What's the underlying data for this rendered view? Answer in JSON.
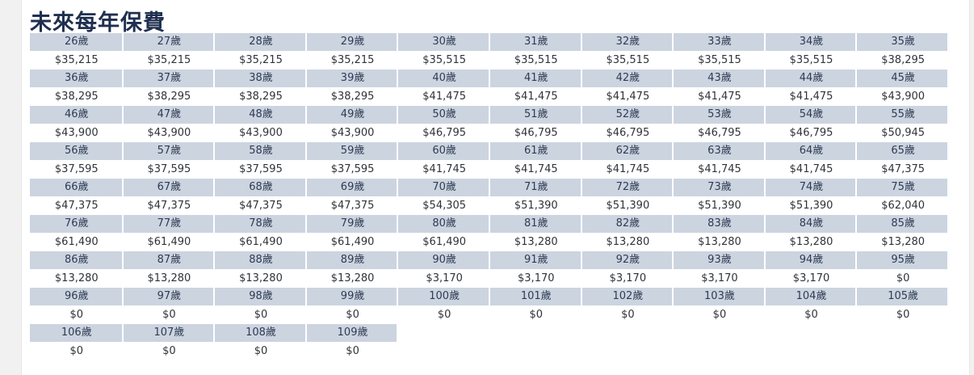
{
  "title": "未來每年保費",
  "columns": 10,
  "rows": [
    {
      "ages": [
        "26歲",
        "27歲",
        "28歲",
        "29歲",
        "30歲",
        "31歲",
        "32歲",
        "33歲",
        "34歲",
        "35歲"
      ],
      "premiums": [
        "$35,215",
        "$35,215",
        "$35,215",
        "$35,215",
        "$35,515",
        "$35,515",
        "$35,515",
        "$35,515",
        "$35,515",
        "$38,295"
      ]
    },
    {
      "ages": [
        "36歲",
        "37歲",
        "38歲",
        "39歲",
        "40歲",
        "41歲",
        "42歲",
        "43歲",
        "44歲",
        "45歲"
      ],
      "premiums": [
        "$38,295",
        "$38,295",
        "$38,295",
        "$38,295",
        "$41,475",
        "$41,475",
        "$41,475",
        "$41,475",
        "$41,475",
        "$43,900"
      ]
    },
    {
      "ages": [
        "46歲",
        "47歲",
        "48歲",
        "49歲",
        "50歲",
        "51歲",
        "52歲",
        "53歲",
        "54歲",
        "55歲"
      ],
      "premiums": [
        "$43,900",
        "$43,900",
        "$43,900",
        "$43,900",
        "$46,795",
        "$46,795",
        "$46,795",
        "$46,795",
        "$46,795",
        "$50,945"
      ]
    },
    {
      "ages": [
        "56歲",
        "57歲",
        "58歲",
        "59歲",
        "60歲",
        "61歲",
        "62歲",
        "63歲",
        "64歲",
        "65歲"
      ],
      "premiums": [
        "$37,595",
        "$37,595",
        "$37,595",
        "$37,595",
        "$41,745",
        "$41,745",
        "$41,745",
        "$41,745",
        "$41,745",
        "$47,375"
      ]
    },
    {
      "ages": [
        "66歲",
        "67歲",
        "68歲",
        "69歲",
        "70歲",
        "71歲",
        "72歲",
        "73歲",
        "74歲",
        "75歲"
      ],
      "premiums": [
        "$47,375",
        "$47,375",
        "$47,375",
        "$47,375",
        "$54,305",
        "$51,390",
        "$51,390",
        "$51,390",
        "$51,390",
        "$62,040"
      ]
    },
    {
      "ages": [
        "76歲",
        "77歲",
        "78歲",
        "79歲",
        "80歲",
        "81歲",
        "82歲",
        "83歲",
        "84歲",
        "85歲"
      ],
      "premiums": [
        "$61,490",
        "$61,490",
        "$61,490",
        "$61,490",
        "$61,490",
        "$13,280",
        "$13,280",
        "$13,280",
        "$13,280",
        "$13,280"
      ]
    },
    {
      "ages": [
        "86歲",
        "87歲",
        "88歲",
        "89歲",
        "90歲",
        "91歲",
        "92歲",
        "93歲",
        "94歲",
        "95歲"
      ],
      "premiums": [
        "$13,280",
        "$13,280",
        "$13,280",
        "$13,280",
        "$3,170",
        "$3,170",
        "$3,170",
        "$3,170",
        "$3,170",
        "$0"
      ]
    },
    {
      "ages": [
        "96歲",
        "97歲",
        "98歲",
        "99歲",
        "100歲",
        "101歲",
        "102歲",
        "103歲",
        "104歲",
        "105歲"
      ],
      "premiums": [
        "$0",
        "$0",
        "$0",
        "$0",
        "$0",
        "$0",
        "$0",
        "$0",
        "$0",
        "$0"
      ]
    },
    {
      "ages": [
        "106歲",
        "107歲",
        "108歲",
        "109歲"
      ],
      "premiums": [
        "$0",
        "$0",
        "$0",
        "$0"
      ]
    }
  ]
}
